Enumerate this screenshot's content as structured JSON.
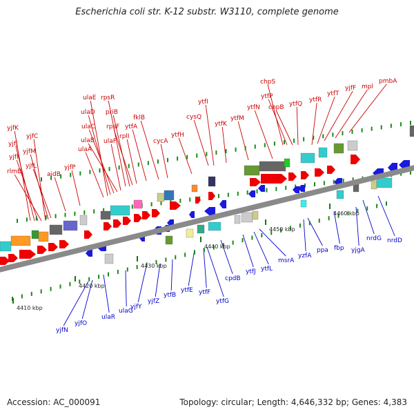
{
  "title": "Escherichia coli str. K-12 substr. W3110, complete genome",
  "footer": {
    "accession": "Accession: AC_000091",
    "summary": "Topology: circular; Length: 4,646,332 bp; Genes: 4,383"
  },
  "colors": {
    "forward_label": "#cc0000",
    "reverse_label": "#0000cc",
    "forward_arrow": "#ee0000",
    "reverse_arrow": "#1a1add",
    "tick_minor": "#1a8a1a",
    "backbone": "#8a8a8a"
  },
  "scale_labels": [
    "4410 kbp",
    "4420 kbp",
    "4430 kbp",
    "4440 kbp",
    "4450 kbp",
    "4460 kbp"
  ],
  "forward_labels": [
    "yjfK",
    "yjfJ",
    "yjfI",
    "rlmB",
    "yjfC",
    "yjfM",
    "yjfL",
    "aidB",
    "yjfP",
    "ulaE",
    "ulaD",
    "ulaC",
    "ulaB",
    "ulaA",
    "rpsR",
    "priB",
    "rpsF",
    "ulaF",
    "rplI",
    "ytfA",
    "fklB",
    "cycA",
    "ytfH",
    "ytfI",
    "cysQ",
    "ytfK",
    "ytfM",
    "ytfN",
    "chpS",
    "ytfP",
    "chpB",
    "ytfQ",
    "ytfR",
    "ytfT",
    "yjfF",
    "mpl",
    "pmbA"
  ],
  "reverse_labels": [
    "yjfN",
    "yjfO",
    "ulaR",
    "ulaG",
    "yjfY",
    "yjfZ",
    "ytfB",
    "ytfE",
    "ytfF",
    "ytfG",
    "cpdB",
    "ytfJ",
    "ytfL",
    "msrA",
    "yzfA",
    "ppa",
    "fbp",
    "yjgA",
    "nrdG",
    "nrdD"
  ]
}
